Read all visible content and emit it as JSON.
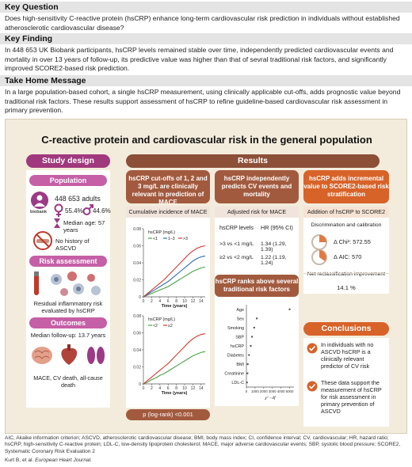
{
  "key_question": {
    "title": "Key Question",
    "body": "Does high-sensitivity C-reactive protein (hsCRP) enhance long-term cardiovascular risk prediction in individuals without established atherosclerotic cardiovascular disease?"
  },
  "key_finding": {
    "title": "Key Finding",
    "body": "In 448 653 UK Biobank participants, hsCRP levels remained stable over time, independently predicted cardiovascular events and mortality in over 13 years of follow-up, its predictive value was higher than that of sevral traditional risk factors, and significantly improved SCORE2-based risk prediction."
  },
  "take_home": {
    "title": "Take Home Message",
    "body": "In a large population-based cohort, a single hsCRP measurement, using clinically applicable cut-offs, adds prognostic value beyond traditional risk factors. These results support assessment of hsCRP to refine guideline-based cardiovascular risk assessment in primary prevention."
  },
  "graphical_abstract": {
    "title": "C-reactive protein and cardiovascular risk in the general population",
    "study_design": {
      "header": "Study design",
      "population": {
        "label": "Population",
        "count": "448 653 adults",
        "biobank": "biobank",
        "female_pct": "55.4%",
        "male_pct": "44.6%",
        "median_age": "Median age: 57 years",
        "no_history": "No history of ASCVD"
      },
      "risk_assessment": {
        "label": "Risk assessment",
        "text": "Residual inflammatory risk evaluated by hsCRP"
      },
      "outcomes": {
        "label": "Outcomes",
        "followup": "Median follow-up: 13.7 years",
        "list": "MACE, CV death, all-cause death"
      }
    },
    "results": {
      "header": "Results",
      "col1": {
        "pill": "hsCRP cut-offs of 1, 2 and 3 mg/L are clinically relevant in prediction of MACE",
        "sub": "Cumulative incidence of MACE",
        "pvalue": "p (log-rank) <0.001"
      },
      "col2": {
        "pill": "hsCRP independently predicts CV events and mortality",
        "sub": "Adjusted risk for MACE",
        "table_headers": [
          "hsCRP levels",
          "HR (95% CI)"
        ],
        "table_rows": [
          {
            "level": ">3 vs <1 mg/L",
            "hr": "1.34 (1.29, 1.39)"
          },
          {
            "level": "≥2 vs <2 mg/L",
            "hr": "1.22 (1.19, 1.24)"
          }
        ],
        "ranks_pill": "hsCRP ranks above several traditional risk factors"
      },
      "col3": {
        "pill": "hsCRP adds incremental value to SCORE2-based risk stratification",
        "sub": "Addition of hsCRP to SCORE2",
        "discrimination": "Discrimination and calibration",
        "chi2": "Δ Chi²: 572.55",
        "aic": "Δ AIC: 570",
        "nri_label": "Net reclassification improvement",
        "nri_value": "14.1 %"
      },
      "conclusions": {
        "header": "Conclusions",
        "items": [
          "In individuals with no ASCVD hsCRP is a clinically relevant predictor of CV risk",
          "These data support the measurement of hsCRP for risk assessment in primary prevention of ASCVD"
        ]
      }
    }
  },
  "footer": "AIC, Akaike information criterion; ASCVD, atherosclerotic cardiovascular disease; BMI, body mass index; CI, confidence interval; CV, cardiovascular; HR, hazard ratio; hsCRP, high-sensitivity C-reactive protein; LDL-C, low-density lipoprotein cholesterol; MACE, major adverse cardiovascular events; SBP, systolic blood pressure; SCORE2, Systematic Coronary Risk Evaluation 2",
  "citation_authors": "Kurt B, et al.",
  "citation_journal": "European Heart Journal.",
  "colors": {
    "purple": "#a0387e",
    "brown": "#8c4f38",
    "orange": "#d76329",
    "line_green": "#4aa34a",
    "line_blue": "#2f6fb5",
    "line_red": "#d9382f",
    "check": "#d76329"
  },
  "chart_data": [
    {
      "type": "line",
      "title": "",
      "legend_title": "hsCRP (mg/L)",
      "xlabel": "Time (years)",
      "ylabel": "",
      "x": [
        0,
        1,
        2,
        3,
        4,
        5,
        6,
        7,
        8,
        9,
        10,
        11,
        12,
        13,
        14,
        15
      ],
      "xticks": [
        0,
        2,
        4,
        6,
        8,
        10,
        12,
        14
      ],
      "xlim": [
        0,
        15
      ],
      "ylim": [
        0,
        0.08
      ],
      "yticks": [
        0,
        0.02,
        0.04,
        0.06,
        0.08
      ],
      "yticklabels": [
        "0",
        "0.02",
        "0.04",
        "0.06",
        "0.08"
      ],
      "series": [
        {
          "name": "<1",
          "color": "#4aa34a",
          "values": [
            0,
            0.002,
            0.004,
            0.006,
            0.008,
            0.01,
            0.012,
            0.015,
            0.018,
            0.021,
            0.024,
            0.027,
            0.03,
            0.032,
            0.034,
            0.035
          ]
        },
        {
          "name": "1–3",
          "color": "#2f6fb5",
          "values": [
            0,
            0.003,
            0.006,
            0.009,
            0.012,
            0.015,
            0.018,
            0.022,
            0.026,
            0.03,
            0.034,
            0.038,
            0.042,
            0.045,
            0.047,
            0.048
          ]
        },
        {
          "name": ">3",
          "color": "#d9382f",
          "values": [
            0,
            0.004,
            0.008,
            0.012,
            0.016,
            0.02,
            0.025,
            0.03,
            0.035,
            0.04,
            0.045,
            0.05,
            0.054,
            0.057,
            0.059,
            0.06
          ]
        }
      ]
    },
    {
      "type": "line",
      "title": "",
      "legend_title": "hsCRP (mg/L)",
      "xlabel": "Time (years)",
      "ylabel": "",
      "x": [
        0,
        1,
        2,
        3,
        4,
        5,
        6,
        7,
        8,
        9,
        10,
        11,
        12,
        13,
        14,
        15
      ],
      "xticks": [
        0,
        2,
        4,
        6,
        8,
        10,
        12,
        14
      ],
      "xlim": [
        0,
        15
      ],
      "ylim": [
        0,
        0.08
      ],
      "yticks": [
        0,
        0.02,
        0.04,
        0.06,
        0.08
      ],
      "yticklabels": [
        "0",
        "0.02",
        "0.04",
        "0.06",
        "0.08"
      ],
      "series": [
        {
          "name": "<2",
          "color": "#4aa34a",
          "values": [
            0,
            0.002,
            0.005,
            0.007,
            0.01,
            0.012,
            0.015,
            0.018,
            0.021,
            0.024,
            0.027,
            0.03,
            0.033,
            0.035,
            0.037,
            0.038
          ]
        },
        {
          "name": "≥2",
          "color": "#d9382f",
          "values": [
            0,
            0.004,
            0.008,
            0.012,
            0.016,
            0.02,
            0.024,
            0.029,
            0.034,
            0.039,
            0.044,
            0.049,
            0.053,
            0.056,
            0.058,
            0.059
          ]
        }
      ]
    },
    {
      "type": "scatter",
      "title": "",
      "xlabel": "χ² - df",
      "ylabel": "",
      "categories": [
        "Age",
        "Sex",
        "Smoking",
        "SBP",
        "hsCRP",
        "Diabetes",
        "BMI",
        "Creatinine",
        "LDL-C"
      ],
      "values": [
        5000,
        1200,
        900,
        650,
        500,
        300,
        150,
        120,
        60
      ],
      "xlim": [
        0,
        5500
      ],
      "xticks": [
        0,
        1000,
        2000,
        3000,
        4000,
        5000
      ]
    }
  ]
}
